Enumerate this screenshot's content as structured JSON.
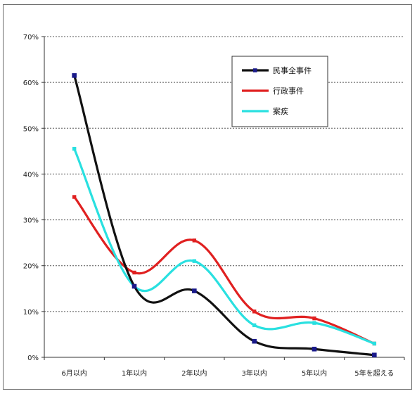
{
  "chart_data": {
    "type": "line",
    "categories": [
      "6月以内",
      "1年以内",
      "2年以内",
      "3年以内",
      "5年以内",
      "5年を超える"
    ],
    "y_ticks": [
      "0%",
      "10%",
      "20%",
      "30%",
      "40%",
      "50%",
      "60%",
      "70%"
    ],
    "ylim": [
      0,
      70
    ],
    "grid": true,
    "legend_position": "top-right",
    "series": [
      {
        "name": "民事全事件",
        "color": "#111111",
        "marker": true,
        "values": [
          61.5,
          15.5,
          14.5,
          3.5,
          1.8,
          0.5
        ]
      },
      {
        "name": "行政事件",
        "color": "#e02020",
        "marker": false,
        "values": [
          35.0,
          18.5,
          25.5,
          10.0,
          8.5,
          3.0
        ]
      },
      {
        "name": "案疾",
        "color": "#29e0e0",
        "marker": false,
        "values": [
          45.5,
          15.5,
          21.0,
          7.0,
          7.5,
          3.0
        ]
      }
    ]
  }
}
